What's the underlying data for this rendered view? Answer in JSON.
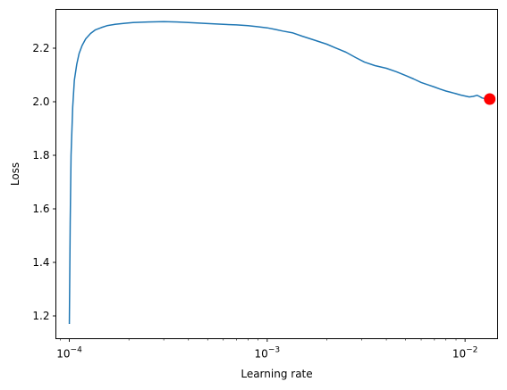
{
  "chart_data": {
    "type": "line",
    "title": "",
    "xlabel": "Learning rate",
    "ylabel": "Loss",
    "xscale": "log",
    "xlim": [
      8.55e-05,
      0.0146
    ],
    "ylim": [
      1.115,
      2.345
    ],
    "grid": false,
    "x_ticks": [
      {
        "value": 0.0001,
        "base": "10",
        "exp": "−4"
      },
      {
        "value": 0.001,
        "base": "10",
        "exp": "−3"
      },
      {
        "value": 0.01,
        "base": "10",
        "exp": "−2"
      }
    ],
    "y_ticks": [
      1.2,
      1.4,
      1.6,
      1.8,
      2.0,
      2.2
    ],
    "y_tick_labels": [
      "1.2",
      "1.4",
      "1.6",
      "1.8",
      "2.0",
      "2.2"
    ],
    "series": [
      {
        "color": "#1f77b4",
        "x": [
          0.0001,
          0.000101,
          0.000102,
          0.000104,
          0.000106,
          0.000109,
          0.000112,
          0.000116,
          0.000121,
          0.000128,
          0.000135,
          0.000145,
          0.000155,
          0.00017,
          0.00019,
          0.00021,
          0.00025,
          0.0003,
          0.00035,
          0.0004,
          0.0005,
          0.0006,
          0.0007,
          0.0008,
          0.0009,
          0.001,
          0.0011,
          0.0012,
          0.00135,
          0.0015,
          0.0017,
          0.002,
          0.0022,
          0.0025,
          0.0028,
          0.0031,
          0.0035,
          0.004,
          0.0045,
          0.005,
          0.0055,
          0.006,
          0.0065,
          0.007,
          0.0075,
          0.008,
          0.0085,
          0.009,
          0.0095,
          0.0099,
          0.0105,
          0.011,
          0.0115,
          0.0118,
          0.0122,
          0.0127,
          0.0132
        ],
        "y": [
          1.17,
          1.55,
          1.8,
          1.98,
          2.08,
          2.14,
          2.18,
          2.21,
          2.235,
          2.255,
          2.268,
          2.277,
          2.284,
          2.289,
          2.293,
          2.296,
          2.298,
          2.299,
          2.298,
          2.296,
          2.292,
          2.289,
          2.287,
          2.284,
          2.28,
          2.276,
          2.27,
          2.264,
          2.257,
          2.245,
          2.232,
          2.215,
          2.202,
          2.185,
          2.165,
          2.148,
          2.135,
          2.125,
          2.112,
          2.098,
          2.085,
          2.072,
          2.063,
          2.055,
          2.047,
          2.04,
          2.035,
          2.03,
          2.025,
          2.022,
          2.018,
          2.02,
          2.024,
          2.02,
          2.014,
          2.011,
          2.01
        ]
      }
    ],
    "marker": {
      "x": 0.01332,
      "y": 2.01,
      "color": "#ff0000"
    }
  }
}
